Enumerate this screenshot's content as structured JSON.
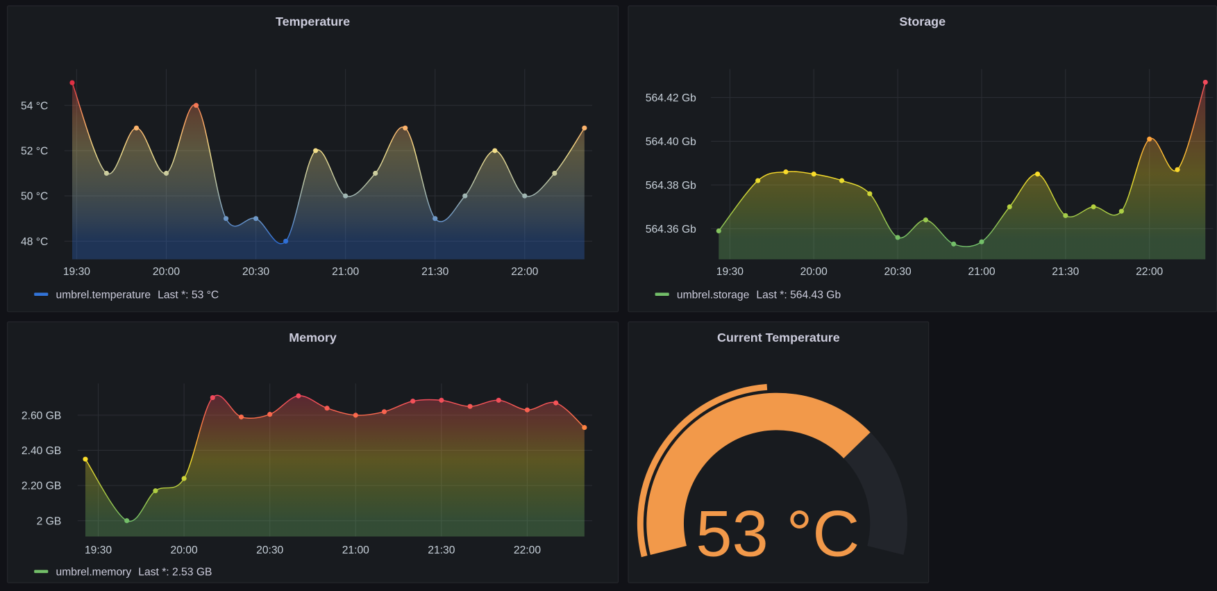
{
  "colors": {
    "background": "#111217",
    "panel": "#181b1f",
    "gauge_value": "#f2994a",
    "gauge_track": "#22252b"
  },
  "x_ticks": [
    "19:30",
    "20:00",
    "20:30",
    "21:00",
    "21:30",
    "22:00"
  ],
  "chart_data": [
    {
      "id": "temperature",
      "type": "area",
      "title": "Temperature",
      "series_name": "umbrel.temperature",
      "legend_last": "Last *: 53 °C",
      "legend_color": "#3274d9",
      "x_minutes_after_19_00": [
        28.5,
        40,
        50,
        60,
        70,
        80,
        90,
        100,
        110,
        120,
        130,
        140,
        150,
        160,
        170,
        180,
        190,
        200
      ],
      "values": [
        55,
        51,
        53,
        51,
        54,
        49,
        49,
        48,
        52,
        50,
        51,
        53,
        49,
        50,
        52,
        50,
        51,
        53
      ],
      "xlim": [
        28.5,
        200
      ],
      "ylim": [
        47.2,
        55.6
      ],
      "y_ticks": [
        {
          "v": 48,
          "label": "48 °C"
        },
        {
          "v": 50,
          "label": "50 °C"
        },
        {
          "v": 52,
          "label": "52 °C"
        },
        {
          "v": 54,
          "label": "54 °C"
        }
      ],
      "color_stops": [
        {
          "v": 55,
          "c": "#e02f44"
        },
        {
          "v": 53.5,
          "c": "#ff9e5e"
        },
        {
          "v": 52,
          "c": "#f5e08a"
        },
        {
          "v": 50.5,
          "c": "#b8c4a8"
        },
        {
          "v": 49,
          "c": "#6e98c8"
        },
        {
          "v": 48,
          "c": "#2f6fd6"
        }
      ]
    },
    {
      "id": "storage",
      "type": "area",
      "title": "Storage",
      "series_name": "umbrel.storage",
      "legend_last": "Last *: 564.43 Gb",
      "legend_color": "#73bf69",
      "x_minutes_after_19_00": [
        26,
        40,
        50,
        60,
        70,
        80,
        90,
        100,
        110,
        120,
        130,
        140,
        150,
        160,
        170,
        180,
        190,
        200
      ],
      "values": [
        564.359,
        564.382,
        564.386,
        564.385,
        564.382,
        564.376,
        564.356,
        564.364,
        564.353,
        564.354,
        564.37,
        564.385,
        564.366,
        564.37,
        564.368,
        564.401,
        564.387,
        564.427
      ],
      "xlim": [
        26,
        200
      ],
      "ylim": [
        564.346,
        564.433
      ],
      "y_ticks": [
        {
          "v": 564.36,
          "label": "564.36 Gb"
        },
        {
          "v": 564.38,
          "label": "564.38 Gb"
        },
        {
          "v": 564.4,
          "label": "564.40 Gb"
        },
        {
          "v": 564.42,
          "label": "564.42 Gb"
        }
      ],
      "color_stops": [
        {
          "v": 564.427,
          "c": "#f2495c"
        },
        {
          "v": 564.4,
          "c": "#ffa83a"
        },
        {
          "v": 564.385,
          "c": "#fade2a"
        },
        {
          "v": 564.37,
          "c": "#b5d13f"
        },
        {
          "v": 564.355,
          "c": "#73bf69"
        }
      ]
    },
    {
      "id": "memory",
      "type": "area",
      "title": "Memory",
      "series_name": "umbrel.memory",
      "legend_last": "Last *: 2.53 GB",
      "legend_color": "#73bf69",
      "x_minutes_after_19_00": [
        25.5,
        40,
        50,
        60,
        70,
        80,
        90,
        100,
        110,
        120,
        130,
        140,
        150,
        160,
        170,
        180,
        190,
        200
      ],
      "values": [
        2.35,
        2.0,
        2.17,
        2.24,
        2.7,
        2.59,
        2.605,
        2.71,
        2.64,
        2.6,
        2.62,
        2.68,
        2.685,
        2.65,
        2.685,
        2.63,
        2.67,
        2.53
      ],
      "xlim": [
        25.5,
        200
      ],
      "ylim": [
        1.91,
        2.78
      ],
      "y_ticks": [
        {
          "v": 2.0,
          "label": "2 GB"
        },
        {
          "v": 2.2,
          "label": "2.20 GB"
        },
        {
          "v": 2.4,
          "label": "2.40 GB"
        },
        {
          "v": 2.6,
          "label": "2.60 GB"
        }
      ],
      "color_stops": [
        {
          "v": 2.7,
          "c": "#f2495c"
        },
        {
          "v": 2.55,
          "c": "#ff7a45"
        },
        {
          "v": 2.35,
          "c": "#fade2a"
        },
        {
          "v": 2.15,
          "c": "#a8cc44"
        },
        {
          "v": 2.0,
          "c": "#73bf69"
        }
      ]
    }
  ],
  "gauge": {
    "title": "Current Temperature",
    "value_text": "53 °C",
    "value": 53,
    "fill_fraction": 0.72,
    "threshold_fraction": 0.48
  }
}
